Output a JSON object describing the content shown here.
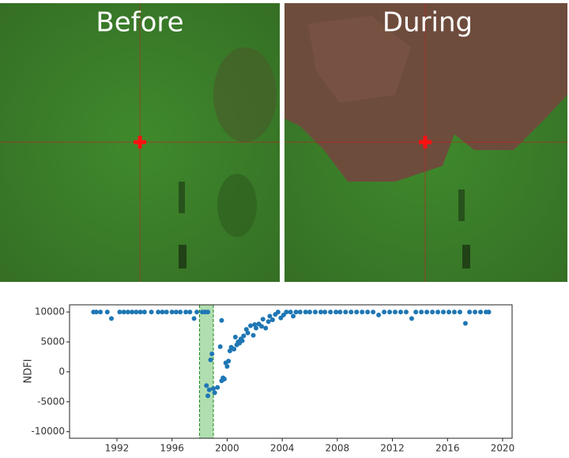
{
  "images": [
    {
      "title": "Before"
    },
    {
      "title": "During"
    }
  ],
  "chart_data": {
    "type": "scatter",
    "ylabel": "NDFI",
    "xlim": [
      1988.56,
      2020.69
    ],
    "ylim": [
      -11100,
      11200
    ],
    "xticks": [
      1992,
      1996,
      2000,
      2004,
      2008,
      2012,
      2016,
      2020
    ],
    "yticks": [
      -10000,
      -5000,
      0,
      5000,
      10000
    ],
    "grid": false,
    "spans": [
      {
        "x0": 1998,
        "x1": 1999,
        "color": "#90d090",
        "edge_color": "#1a8a1a"
      }
    ],
    "series": [
      {
        "color": "#1f77b4",
        "x": [
          1990.3,
          1990.5,
          1990.8,
          1991.3,
          1991.6,
          1992.2,
          1992.5,
          1992.8,
          1993.1,
          1993.4,
          1993.7,
          1994.0,
          1994.5,
          1995.0,
          1995.3,
          1995.6,
          1996.0,
          1996.3,
          1996.6,
          1997.0,
          1997.3,
          1997.6,
          1997.8,
          1998.2,
          1998.4,
          1998.6,
          1998.5,
          1998.6,
          1998.7,
          1998.8,
          1998.9,
          1999.0,
          1999.1,
          1999.3,
          1999.5,
          1999.6,
          1999.6,
          1999.7,
          1999.8,
          1999.9,
          2000.0,
          2000.1,
          2000.2,
          2000.3,
          2000.5,
          2000.6,
          2000.7,
          2000.8,
          2000.9,
          2001.0,
          2001.1,
          2001.2,
          2001.4,
          2001.5,
          2001.7,
          2001.9,
          2002.0,
          2002.1,
          2002.3,
          2002.5,
          2002.6,
          2002.8,
          2003.0,
          2003.1,
          2003.3,
          2003.5,
          2003.7,
          2003.9,
          2004.1,
          2004.3,
          2004.6,
          2004.8,
          2005.0,
          2005.3,
          2005.7,
          2006.0,
          2006.4,
          2006.8,
          2007.1,
          2007.5,
          2007.9,
          2008.2,
          2008.6,
          2009.0,
          2009.4,
          2009.8,
          2010.2,
          2010.6,
          2011.0,
          2011.4,
          2011.8,
          2012.2,
          2012.6,
          2013.0,
          2013.4,
          2013.7,
          2014.1,
          2014.5,
          2014.9,
          2015.3,
          2015.7,
          2016.1,
          2016.5,
          2016.9,
          2017.3,
          2017.6,
          2018.0,
          2018.4,
          2018.8,
          2019.0
        ],
        "values": [
          10000,
          10000,
          10000,
          10000,
          8900,
          10000,
          10000,
          10000,
          10000,
          10000,
          10000,
          10000,
          10000,
          10000,
          10000,
          10000,
          10000,
          10000,
          10000,
          10000,
          10000,
          8900,
          10000,
          10000,
          10000,
          10000,
          -2300,
          -4000,
          -3000,
          2000,
          3000,
          -2800,
          -3500,
          -2600,
          4200,
          8600,
          -1500,
          -1000,
          -1200,
          1500,
          900,
          1800,
          3500,
          4100,
          3800,
          5800,
          4500,
          5000,
          4800,
          5500,
          5200,
          6000,
          7100,
          6500,
          7700,
          6100,
          7900,
          7300,
          8000,
          7600,
          8800,
          7300,
          8400,
          9300,
          8700,
          9600,
          10000,
          9000,
          9500,
          10000,
          10000,
          9300,
          10000,
          10000,
          10000,
          10000,
          10000,
          10000,
          10000,
          10000,
          10000,
          10000,
          10000,
          10000,
          10000,
          10000,
          10000,
          10000,
          9500,
          10000,
          10000,
          10000,
          10000,
          10000,
          8900,
          10000,
          10000,
          10000,
          10000,
          10000,
          10000,
          10000,
          10000,
          10000,
          8100,
          10000,
          10000,
          10000,
          10000,
          10000
        ]
      }
    ]
  }
}
